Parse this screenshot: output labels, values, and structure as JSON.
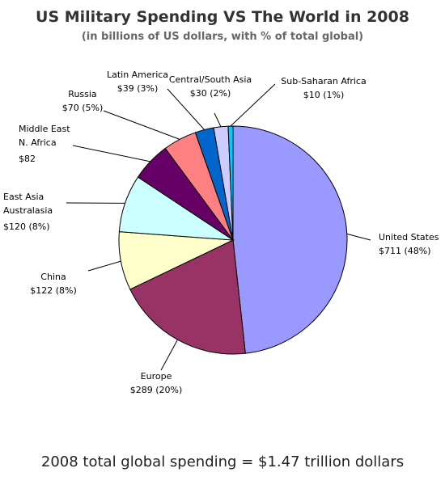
{
  "chart_data": {
    "type": "pie",
    "title": "US Military Spending VS The World in 2008",
    "subtitle": "(in billions of US dollars, with % of total global)",
    "categories": [
      "United States",
      "Europe",
      "China",
      "East Asia Australasia",
      "Middle East N. Africa",
      "Russia",
      "Latin America",
      "Central/South Asia",
      "Sub-Saharan Africa"
    ],
    "values": [
      711,
      289,
      122,
      120,
      82,
      70,
      39,
      30,
      10
    ],
    "colors": [
      "#9999ff",
      "#993366",
      "#ffffcc",
      "#ccffff",
      "#660066",
      "#ff8080",
      "#0066cc",
      "#ccccff",
      "#00ccff"
    ],
    "labels": [
      {
        "lines": [
          "United States"
        ],
        "value": "$711 (48%)"
      },
      {
        "lines": [
          "Europe"
        ],
        "value": "$289 (20%)"
      },
      {
        "lines": [
          "China"
        ],
        "value": "$122 (8%)"
      },
      {
        "lines": [
          "East Asia",
          "Australasia"
        ],
        "value": "$120 (8%)"
      },
      {
        "lines": [
          "Middle East",
          "N. Africa"
        ],
        "value": "$82"
      },
      {
        "lines": [
          "Russia"
        ],
        "value": "$70 (5%)"
      },
      {
        "lines": [
          "Latin America"
        ],
        "value": "$39 (3%)"
      },
      {
        "lines": [
          "Central/South Asia"
        ],
        "value": "$30 (2%)"
      },
      {
        "lines": [
          "Sub-Saharan Africa"
        ],
        "value": "$10 (1%)"
      }
    ]
  },
  "footer": {
    "text": "2008 total global spending = $1.47 trillion dollars"
  }
}
